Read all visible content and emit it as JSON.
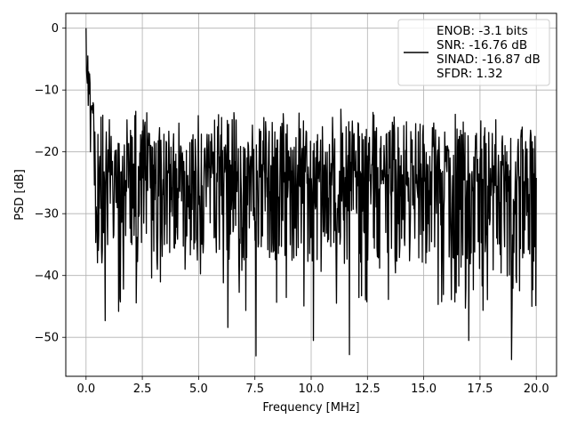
{
  "chart_data": {
    "type": "line",
    "title": "",
    "xlabel": "Frequency [MHz]",
    "ylabel": "PSD [dB]",
    "xlim": [
      -0.9,
      20.9
    ],
    "ylim": [
      -56.3,
      2.4
    ],
    "x_ticks": [
      0.0,
      2.5,
      5.0,
      7.5,
      10.0,
      12.5,
      15.0,
      17.5,
      20.0
    ],
    "x_tick_labels": [
      "0.0",
      "2.5",
      "5.0",
      "7.5",
      "10.0",
      "12.5",
      "15.0",
      "17.5",
      "20.0"
    ],
    "y_ticks": [
      0,
      -10,
      -20,
      -30,
      -40,
      -50
    ],
    "y_tick_labels": [
      "0",
      "−10",
      "−20",
      "−30",
      "−40",
      "−50"
    ],
    "grid": true,
    "legend_position": "top-right",
    "line_color": "#000000",
    "series": [
      {
        "name": "ENOB: -3.1 bits\nSNR: -16.76 dB\nSINAD: -16.87 dB\nSFDR: 1.32",
        "legend_lines": [
          "ENOB: -3.1 bits",
          "SNR: -16.76 dB",
          "SINAD: -16.87 dB",
          "SFDR: 1.32"
        ],
        "x_range": [
          0.0,
          20.0
        ],
        "num_points": 1024,
        "noise_floor_db": -23,
        "upper_envelope_db": -13,
        "lower_envelope_db": -38,
        "peak": {
          "x": 0.0,
          "y": 0.0
        },
        "lowest_dips": [
          {
            "x": 7.55,
            "y": -53.0
          },
          {
            "x": 11.7,
            "y": -52.8
          },
          {
            "x": 18.9,
            "y": -53.6
          },
          {
            "x": 10.1,
            "y": -50.5
          },
          {
            "x": 17.0,
            "y": -50.5
          },
          {
            "x": 6.3,
            "y": -48.4
          },
          {
            "x": 0.85,
            "y": -47.3
          }
        ]
      }
    ]
  }
}
